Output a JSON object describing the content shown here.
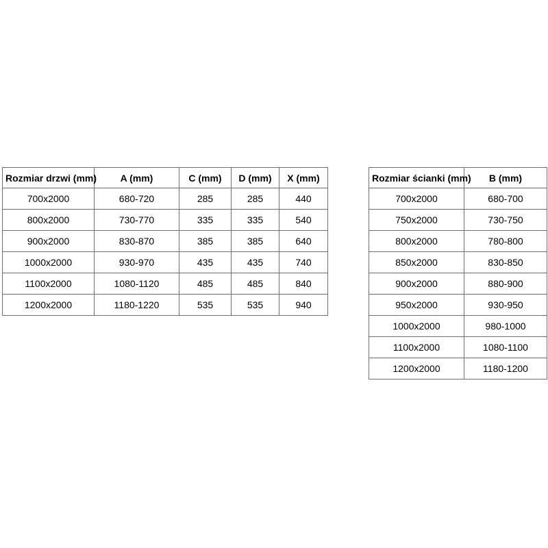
{
  "tables": {
    "doors": {
      "name": "door-dimensions-table",
      "headers": [
        "Rozmiar drzwi (mm)",
        "A (mm)",
        "C (mm)",
        "D (mm)",
        "X (mm)"
      ],
      "rows": [
        [
          "700x2000",
          "680-720",
          "285",
          "285",
          "440"
        ],
        [
          "800x2000",
          "730-770",
          "335",
          "335",
          "540"
        ],
        [
          "900x2000",
          "830-870",
          "385",
          "385",
          "640"
        ],
        [
          "1000x2000",
          "930-970",
          "435",
          "435",
          "740"
        ],
        [
          "1100x2000",
          "1080-1120",
          "485",
          "485",
          "840"
        ],
        [
          "1200x2000",
          "1180-1220",
          "535",
          "535",
          "940"
        ]
      ]
    },
    "walls": {
      "name": "wall-dimensions-table",
      "headers": [
        "Rozmiar ścianki (mm)",
        "B (mm)"
      ],
      "rows": [
        [
          "700x2000",
          "680-700"
        ],
        [
          "750x2000",
          "730-750"
        ],
        [
          "800x2000",
          "780-800"
        ],
        [
          "850x2000",
          "830-850"
        ],
        [
          "900x2000",
          "880-900"
        ],
        [
          "950x2000",
          "930-950"
        ],
        [
          "1000x2000",
          "980-1000"
        ],
        [
          "1100x2000",
          "1080-1100"
        ],
        [
          "1200x2000",
          "1180-1200"
        ]
      ]
    },
    "style": {
      "border_color": "#6e6e6e",
      "text_color": "#000000",
      "background_color": "#ffffff"
    }
  }
}
